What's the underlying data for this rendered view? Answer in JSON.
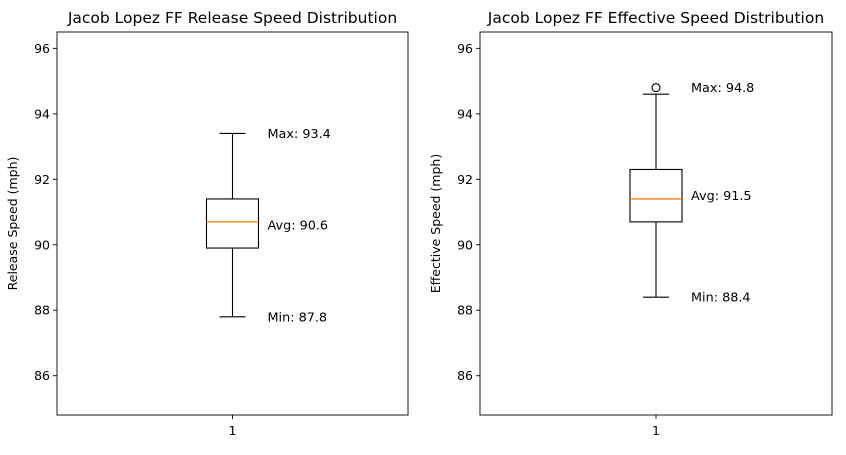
{
  "chart_data": [
    {
      "type": "box",
      "title": "Jacob Lopez FF Release Speed Distribution",
      "xlabel": "",
      "ylabel": "Release Speed (mph)",
      "ylim": [
        84.8,
        96.5
      ],
      "yticks": [
        "86",
        "88",
        "90",
        "92",
        "94",
        "96"
      ],
      "xticks": [
        "1"
      ],
      "box": {
        "whislo": 87.8,
        "q1": 89.9,
        "med": 90.7,
        "q3": 91.4,
        "whishi": 93.4,
        "fliers": []
      },
      "annotations": [
        {
          "text": "Max: 93.4",
          "y": 93.4
        },
        {
          "text": "Avg: 90.6",
          "y": 90.6
        },
        {
          "text": "Min: 87.8",
          "y": 87.8
        }
      ],
      "colors": {
        "median": "#ff7f0e",
        "box": "#000000"
      }
    },
    {
      "type": "box",
      "title": "Jacob Lopez FF Effective Speed Distribution",
      "xlabel": "",
      "ylabel": "Effective Speed (mph)",
      "ylim": [
        84.8,
        96.5
      ],
      "yticks": [
        "86",
        "88",
        "90",
        "92",
        "94",
        "96"
      ],
      "xticks": [
        "1"
      ],
      "box": {
        "whislo": 88.4,
        "q1": 90.7,
        "med": 91.4,
        "q3": 92.3,
        "whishi": 94.6,
        "fliers": [
          94.8
        ]
      },
      "annotations": [
        {
          "text": "Max: 94.8",
          "y": 94.8
        },
        {
          "text": "Avg: 91.5",
          "y": 91.5
        },
        {
          "text": "Min: 88.4",
          "y": 88.4
        }
      ],
      "colors": {
        "median": "#ff7f0e",
        "box": "#000000"
      }
    }
  ]
}
